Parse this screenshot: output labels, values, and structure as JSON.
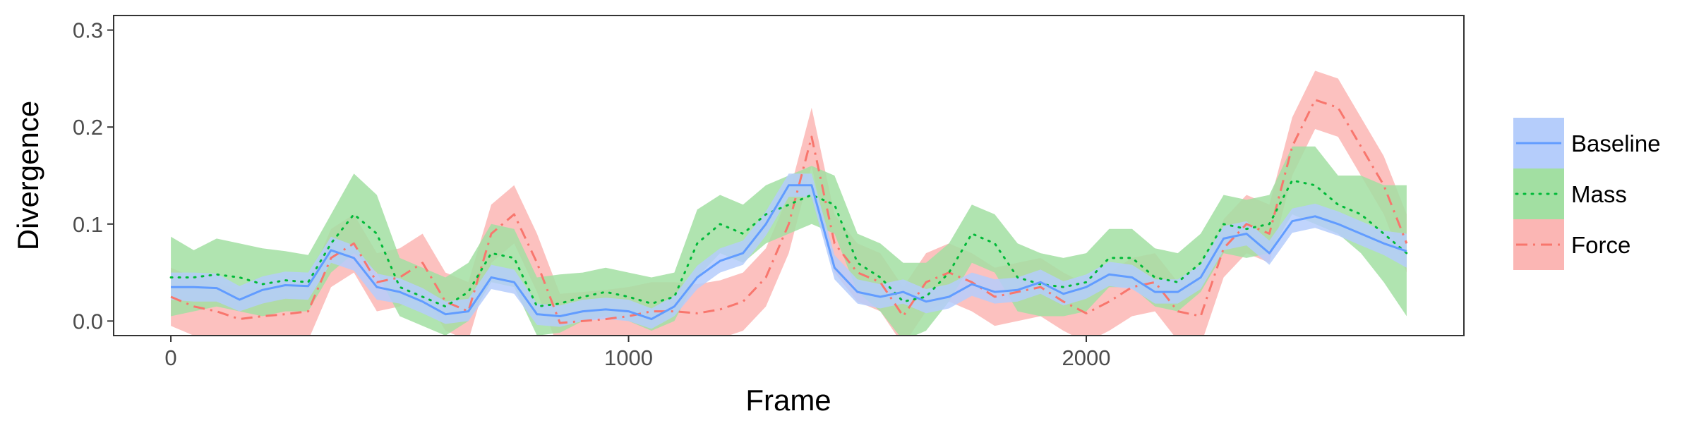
{
  "chart_data": {
    "type": "line",
    "title": "",
    "xlabel": "Frame",
    "ylabel": "Divergence",
    "xlim": [
      -125,
      2825
    ],
    "ylim": [
      -0.015,
      0.315
    ],
    "xticks": [
      0,
      1000,
      2000
    ],
    "yticks": [
      0.0,
      0.1,
      0.2,
      0.3
    ],
    "xtick_labels": [
      "0",
      "1000",
      "2000"
    ],
    "ytick_labels": [
      "0.0",
      "0.1",
      "0.2",
      "0.3"
    ],
    "grid": false,
    "legend_position": "right",
    "x": [
      0,
      50,
      100,
      150,
      200,
      250,
      300,
      350,
      400,
      450,
      500,
      550,
      600,
      650,
      700,
      750,
      800,
      850,
      900,
      950,
      1000,
      1050,
      1100,
      1150,
      1200,
      1250,
      1300,
      1350,
      1400,
      1450,
      1500,
      1550,
      1600,
      1650,
      1700,
      1750,
      1800,
      1850,
      1900,
      1950,
      2000,
      2050,
      2100,
      2150,
      2200,
      2250,
      2300,
      2350,
      2400,
      2450,
      2500,
      2550,
      2600,
      2650,
      2700
    ],
    "series": [
      {
        "name": "Baseline",
        "color": "#619cff",
        "fill": "#b5cdfb",
        "line_style": "solid",
        "values": [
          0.035,
          0.035,
          0.034,
          0.022,
          0.032,
          0.037,
          0.036,
          0.073,
          0.065,
          0.035,
          0.03,
          0.02,
          0.007,
          0.01,
          0.045,
          0.04,
          0.007,
          0.005,
          0.01,
          0.012,
          0.01,
          0.002,
          0.015,
          0.045,
          0.062,
          0.07,
          0.1,
          0.14,
          0.14,
          0.055,
          0.03,
          0.025,
          0.03,
          0.02,
          0.025,
          0.038,
          0.03,
          0.032,
          0.04,
          0.028,
          0.035,
          0.048,
          0.045,
          0.03,
          0.03,
          0.045,
          0.085,
          0.09,
          0.07,
          0.103,
          0.108,
          0.1,
          0.09,
          0.08,
          0.072
        ],
        "lower": [
          0.022,
          0.02,
          0.02,
          0.01,
          0.018,
          0.023,
          0.022,
          0.06,
          0.052,
          0.022,
          0.018,
          0.008,
          -0.003,
          0.0,
          0.033,
          0.028,
          -0.004,
          -0.006,
          0.0,
          0.002,
          0.0,
          -0.008,
          0.005,
          0.033,
          0.05,
          0.058,
          0.088,
          0.128,
          0.128,
          0.043,
          0.018,
          0.013,
          0.018,
          0.008,
          0.013,
          0.026,
          0.018,
          0.02,
          0.028,
          0.016,
          0.023,
          0.036,
          0.033,
          0.018,
          0.018,
          0.033,
          0.073,
          0.078,
          0.058,
          0.091,
          0.096,
          0.088,
          0.078,
          0.068,
          0.055
        ],
        "upper": [
          0.05,
          0.05,
          0.049,
          0.036,
          0.046,
          0.051,
          0.05,
          0.087,
          0.078,
          0.049,
          0.044,
          0.034,
          0.02,
          0.023,
          0.058,
          0.053,
          0.018,
          0.016,
          0.022,
          0.024,
          0.022,
          0.013,
          0.026,
          0.057,
          0.075,
          0.083,
          0.113,
          0.152,
          0.152,
          0.068,
          0.043,
          0.038,
          0.043,
          0.033,
          0.038,
          0.05,
          0.043,
          0.045,
          0.053,
          0.041,
          0.048,
          0.061,
          0.058,
          0.043,
          0.043,
          0.058,
          0.098,
          0.103,
          0.083,
          0.116,
          0.121,
          0.113,
          0.103,
          0.093,
          0.09
        ]
      },
      {
        "name": "Mass",
        "color": "#00ba38",
        "fill": "#a2dfa2",
        "line_style": "dotted",
        "values": [
          0.045,
          0.045,
          0.048,
          0.045,
          0.038,
          0.042,
          0.04,
          0.08,
          0.11,
          0.09,
          0.035,
          0.025,
          0.015,
          0.03,
          0.07,
          0.065,
          0.015,
          0.018,
          0.025,
          0.03,
          0.025,
          0.018,
          0.025,
          0.08,
          0.1,
          0.09,
          0.11,
          0.12,
          0.13,
          0.12,
          0.06,
          0.045,
          0.02,
          0.025,
          0.05,
          0.09,
          0.08,
          0.045,
          0.038,
          0.035,
          0.04,
          0.065,
          0.065,
          0.045,
          0.04,
          0.06,
          0.1,
          0.095,
          0.1,
          0.145,
          0.14,
          0.12,
          0.11,
          0.09,
          0.07
        ],
        "lower": [
          0.005,
          0.01,
          0.015,
          0.01,
          0.005,
          0.01,
          0.01,
          0.05,
          0.07,
          0.05,
          0.005,
          -0.005,
          -0.015,
          0.0,
          0.04,
          0.035,
          -0.015,
          -0.012,
          0.0,
          0.005,
          0.0,
          -0.01,
          0.0,
          0.045,
          0.07,
          0.06,
          0.08,
          0.09,
          0.1,
          0.09,
          0.03,
          0.01,
          -0.02,
          -0.01,
          0.02,
          0.06,
          0.05,
          0.01,
          0.005,
          0.005,
          0.01,
          0.035,
          0.035,
          0.015,
          0.01,
          0.03,
          0.07,
          0.065,
          0.07,
          0.11,
          0.1,
          0.09,
          0.07,
          0.04,
          0.005
        ],
        "upper": [
          0.087,
          0.073,
          0.085,
          0.08,
          0.075,
          0.072,
          0.068,
          0.11,
          0.152,
          0.13,
          0.065,
          0.055,
          0.045,
          0.06,
          0.1,
          0.095,
          0.045,
          0.048,
          0.05,
          0.055,
          0.05,
          0.045,
          0.05,
          0.115,
          0.13,
          0.12,
          0.14,
          0.15,
          0.16,
          0.15,
          0.09,
          0.08,
          0.06,
          0.06,
          0.08,
          0.12,
          0.11,
          0.08,
          0.07,
          0.065,
          0.07,
          0.095,
          0.095,
          0.075,
          0.07,
          0.09,
          0.13,
          0.125,
          0.13,
          0.18,
          0.18,
          0.15,
          0.15,
          0.14,
          0.14
        ]
      },
      {
        "name": "Force",
        "color": "#f8766d",
        "fill": "#fbb6b4",
        "line_style": "dashdot",
        "values": [
          0.025,
          0.015,
          0.01,
          0.002,
          0.005,
          0.007,
          0.01,
          0.065,
          0.08,
          0.04,
          0.045,
          0.06,
          0.02,
          0.01,
          0.09,
          0.11,
          0.06,
          -0.002,
          0.0,
          0.002,
          0.005,
          0.01,
          0.01,
          0.008,
          0.012,
          0.02,
          0.045,
          0.1,
          0.19,
          0.08,
          0.05,
          0.04,
          0.005,
          0.04,
          0.05,
          0.04,
          0.025,
          0.03,
          0.035,
          0.02,
          0.008,
          0.02,
          0.035,
          0.04,
          0.01,
          0.005,
          0.075,
          0.1,
          0.09,
          0.18,
          0.228,
          0.22,
          0.18,
          0.14,
          0.08
        ],
        "lower": [
          -0.005,
          -0.015,
          -0.02,
          -0.028,
          -0.025,
          -0.023,
          -0.02,
          0.035,
          0.05,
          0.01,
          0.015,
          0.03,
          -0.01,
          -0.02,
          0.06,
          0.08,
          0.03,
          -0.032,
          -0.03,
          -0.028,
          -0.025,
          -0.02,
          -0.02,
          -0.022,
          -0.018,
          -0.01,
          0.015,
          0.07,
          0.16,
          0.05,
          0.02,
          0.01,
          -0.025,
          0.01,
          0.02,
          0.01,
          -0.005,
          0.0,
          0.005,
          -0.01,
          -0.022,
          -0.01,
          0.005,
          0.01,
          -0.02,
          -0.025,
          0.045,
          0.07,
          0.06,
          0.15,
          0.198,
          0.19,
          0.15,
          0.11,
          0.05
        ],
        "upper": [
          0.055,
          0.045,
          0.04,
          0.032,
          0.035,
          0.037,
          0.04,
          0.095,
          0.11,
          0.07,
          0.075,
          0.09,
          0.05,
          0.04,
          0.12,
          0.14,
          0.09,
          0.028,
          0.03,
          0.032,
          0.035,
          0.04,
          0.04,
          0.038,
          0.042,
          0.05,
          0.075,
          0.13,
          0.22,
          0.11,
          0.08,
          0.07,
          0.035,
          0.07,
          0.08,
          0.07,
          0.055,
          0.06,
          0.065,
          0.05,
          0.038,
          0.05,
          0.065,
          0.07,
          0.04,
          0.035,
          0.105,
          0.13,
          0.12,
          0.21,
          0.258,
          0.25,
          0.21,
          0.17,
          0.11
        ]
      }
    ],
    "legend": [
      {
        "label": "Baseline"
      },
      {
        "label": "Mass"
      },
      {
        "label": "Force"
      }
    ]
  }
}
